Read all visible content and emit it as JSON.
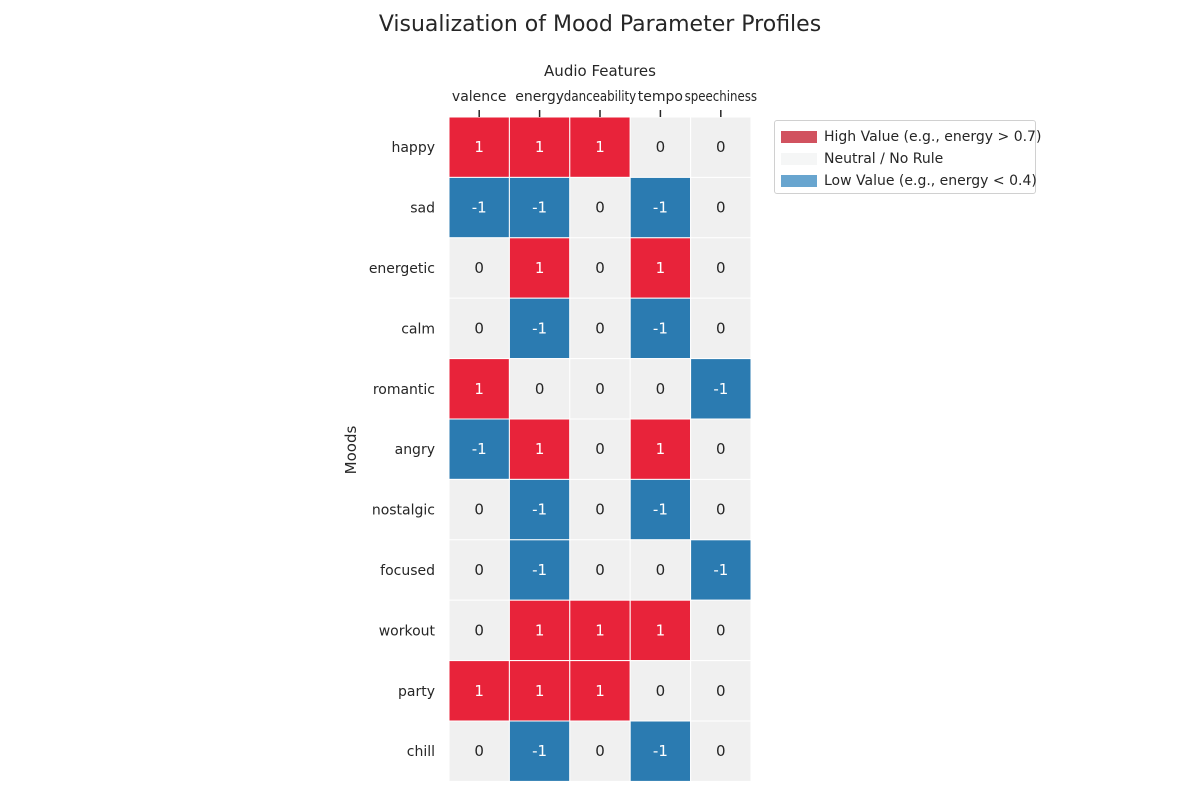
{
  "chart_data": {
    "type": "heatmap",
    "title": "Visualization of Mood Parameter Profiles",
    "xlabel": "Audio Features",
    "ylabel": "Moods",
    "x_axis_position": "top",
    "columns": [
      "valence",
      "energy",
      "danceability",
      "tempo",
      "speechiness"
    ],
    "rows": [
      "happy",
      "sad",
      "energetic",
      "calm",
      "romantic",
      "angry",
      "nostalgic",
      "focused",
      "workout",
      "party",
      "chill"
    ],
    "values": [
      [
        1,
        1,
        1,
        0,
        0
      ],
      [
        -1,
        -1,
        0,
        -1,
        0
      ],
      [
        0,
        1,
        0,
        1,
        0
      ],
      [
        0,
        -1,
        0,
        -1,
        0
      ],
      [
        1,
        0,
        0,
        0,
        -1
      ],
      [
        -1,
        1,
        0,
        1,
        0
      ],
      [
        0,
        -1,
        0,
        -1,
        0
      ],
      [
        0,
        -1,
        0,
        0,
        -1
      ],
      [
        0,
        1,
        1,
        1,
        0
      ],
      [
        1,
        1,
        1,
        0,
        0
      ],
      [
        0,
        -1,
        0,
        -1,
        0
      ]
    ],
    "value_range": [
      -1,
      1
    ],
    "annotations": true,
    "colors": {
      "high": "#e8233a",
      "neutral": "#f0f0f0",
      "low": "#2b7bb1",
      "text_on_color": "#ffffff",
      "text_on_neutral": "#262626",
      "cell_border": "#ffffff"
    },
    "legend": {
      "placement": "upper-right-outside",
      "items": [
        {
          "label": "High Value (e.g., energy > 0.7)",
          "color": "#d1525f"
        },
        {
          "label": "Neutral / No Rule",
          "color": "#f5f6f6"
        },
        {
          "label": "Low Value (e.g., energy < 0.4)",
          "color": "#68a5cf"
        }
      ]
    },
    "grid": false
  }
}
